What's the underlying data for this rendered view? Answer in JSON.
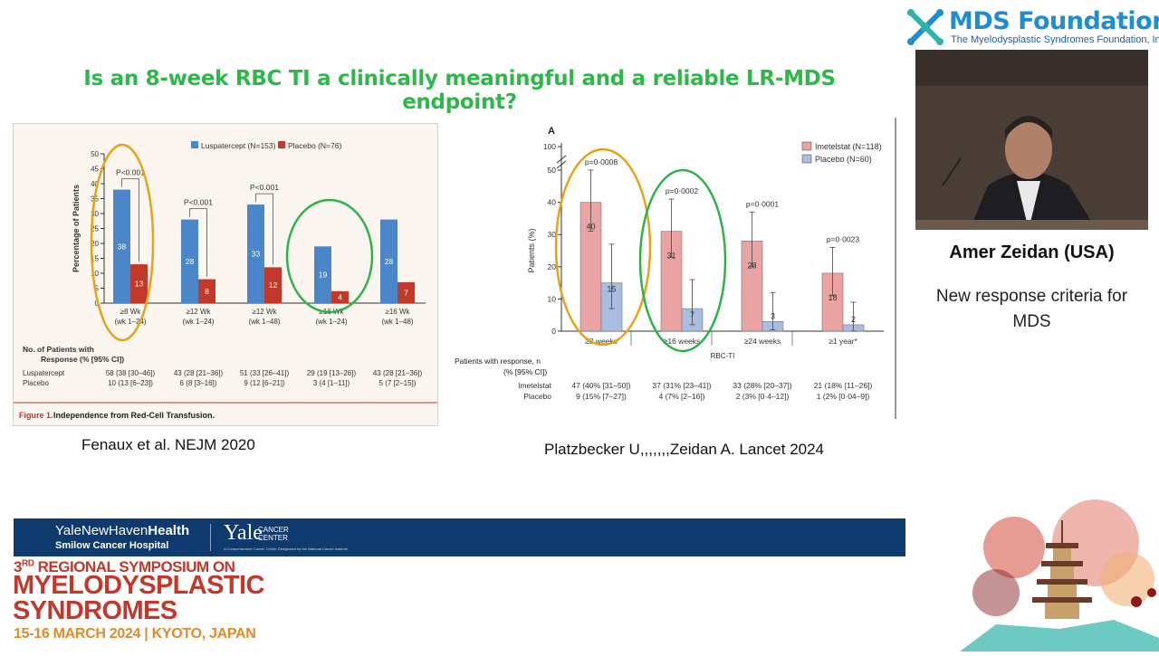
{
  "slide": {
    "title": "Is an 8-week RBC TI a clinically meaningful and a reliable LR-MDS endpoint?"
  },
  "captions": {
    "left": "Fenaux et al. NEJM 2020",
    "right": "Platzbecker U,,,,,,,Zeidan A. Lancet 2024"
  },
  "sidebar": {
    "org_name": "MDS Foundation",
    "org_subtitle": "The Myelodysplastic Syndromes Foundation, Inc.",
    "speaker": "Amer Zeidan (USA)",
    "talk_title": "New response criteria for MDS"
  },
  "footer": {
    "ynh_prefix": "YaleNewHaven",
    "ynh_bold": "Health",
    "smilow": "Smilow Cancer Hospital",
    "yale": "Yale",
    "yale_cancer_center": "CANCER CENTER",
    "yale_cc_fine": "A Comprehensive Cancer Center Designated by the National Cancer Institute",
    "symposium_prefix": "3",
    "symposium_sup": "RD",
    "symposium_line1": " REGIONAL SYMPOSIUM ON",
    "symposium_line2": "MYELODYSPLASTIC",
    "symposium_line3": "SYNDROMES",
    "symposium_line4": "15-16 MARCH 2024 | KYOTO, JAPAN"
  },
  "colors": {
    "title_green": "#2eb84a",
    "luspatercept": "#4a86c8",
    "placebo_left": "#c0392b",
    "imetelstat": "#e9a3a3",
    "placebo_right": "#a9bde0",
    "highlight_orange": "#e8a21a",
    "highlight_green": "#2fb24a",
    "band_navy": "#0e3a6e",
    "symposium_red": "#c0392b",
    "symposium_orange": "#e08a2b"
  },
  "chart_data": [
    {
      "type": "bar",
      "legend": [
        "Luspatercept (N=153)",
        "Placebo (N=76)"
      ],
      "categories": [
        "≥8 Wk\n(wk 1–24)",
        "≥12 Wk\n(wk 1–24)",
        "≥12 Wk\n(wk 1–48)",
        "≥16 Wk\n(wk 1–24)",
        "≥16 Wk\n(wk 1–48)"
      ],
      "series": [
        {
          "name": "Luspatercept (N=153)",
          "values": [
            38,
            28,
            33,
            19,
            28
          ]
        },
        {
          "name": "Placebo (N=76)",
          "values": [
            13,
            8,
            12,
            4,
            7
          ]
        }
      ],
      "p_values": [
        "P<0.001",
        "P<0.001",
        "P<0.001",
        "",
        ""
      ],
      "ylabel": "Percentage of Patients",
      "yticks": [
        0,
        5,
        10,
        15,
        20,
        25,
        30,
        35,
        40,
        45,
        50
      ],
      "ylim": [
        0,
        50
      ],
      "table_header": [
        "No. of Patients with",
        "Response (% [95% CI])"
      ],
      "table_rows": [
        {
          "label": "Luspatercept",
          "cells": [
            "58 (38 [30–46])",
            "43 (28 [21–36])",
            "51 (33 [26–41])",
            "29 (19 [13–26])",
            "43 (28 [21–36])"
          ]
        },
        {
          "label": "Placebo",
          "cells": [
            "10 (13 [6–23])",
            "6 (8 [3–16])",
            "9 (12 [6–21])",
            "3 (4 [1–11])",
            "5 (7 [2–15])"
          ]
        }
      ],
      "figure_label": "Figure 1.",
      "figure_title": "Independence from Red-Cell Transfusion."
    },
    {
      "type": "bar",
      "panel_label": "A",
      "legend": [
        "Imetelstat (N=118)",
        "Placebo (N=60)"
      ],
      "categories": [
        "≥8 weeks",
        "≥16 weeks",
        "≥24 weeks",
        "≥1 year*"
      ],
      "xlabel": "RBC-TI",
      "series": [
        {
          "name": "Imetelstat (N=118)",
          "values": [
            40,
            31,
            28,
            18
          ],
          "ci": [
            [
              31,
              50
            ],
            [
              23,
              41
            ],
            [
              20,
              37
            ],
            [
              11,
              26
            ]
          ]
        },
        {
          "name": "Placebo (N=60)",
          "values": [
            15,
            7,
            3,
            2
          ],
          "ci": [
            [
              7,
              27
            ],
            [
              2,
              16
            ],
            [
              0.4,
              12
            ],
            [
              0.04,
              9
            ]
          ]
        }
      ],
      "p_values": [
        "p=0·0008",
        "p=0·0002",
        "p=0·0001",
        "p=0·0023"
      ],
      "ylabel": "Patients (%)",
      "yticks": [
        0,
        10,
        20,
        30,
        40,
        50,
        100
      ],
      "axis_break": true,
      "table_header": [
        "Patients with response, n",
        "(% [95% CI])"
      ],
      "table_rows": [
        {
          "label": "Imetelstat",
          "cells": [
            "47 (40% [31–50])",
            "37 (31% [23–41])",
            "33 (28% [20–37])",
            "21 (18% [11–26])"
          ]
        },
        {
          "label": "Placebo",
          "cells": [
            "9 (15% [7–27])",
            "4 (7% [2–16])",
            "2 (3% [0·4–12])",
            "1 (2% [0·04–9])"
          ]
        }
      ]
    }
  ]
}
